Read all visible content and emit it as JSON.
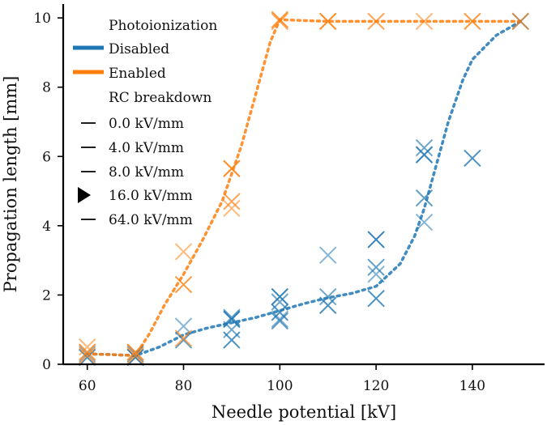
{
  "chart_data": {
    "type": "scatter",
    "title": "",
    "xlabel": "Needle potential [kV]",
    "ylabel": "Propagation length [mm]",
    "xlim": [
      55,
      155
    ],
    "ylim": [
      0,
      10.4
    ],
    "xticks": [
      60,
      80,
      100,
      120,
      140
    ],
    "yticks": [
      0,
      2,
      4,
      6,
      8,
      10
    ],
    "grid": false,
    "legend": {
      "placement": "top-left",
      "group1_title": "Photoionization",
      "series_labels": [
        "Disabled",
        "Enabled"
      ],
      "group2_title": "RC breakdown",
      "breakdown_labels": [
        "0.0 kV/mm",
        "4.0 kV/mm",
        "8.0 kV/mm",
        "16.0 kV/mm",
        "64.0 kV/mm"
      ]
    },
    "series": [
      {
        "name": "Disabled",
        "color": "#1f77b4",
        "points": [
          {
            "x": 60,
            "y": 0.3
          },
          {
            "x": 60,
            "y": 0.2
          },
          {
            "x": 70,
            "y": 0.3
          },
          {
            "x": 70,
            "y": 0.2
          },
          {
            "x": 80,
            "y": 0.7
          },
          {
            "x": 80,
            "y": 1.1
          },
          {
            "x": 90,
            "y": 0.7
          },
          {
            "x": 90,
            "y": 1.0
          },
          {
            "x": 90,
            "y": 1.3
          },
          {
            "x": 90,
            "y": 1.35
          },
          {
            "x": 100,
            "y": 1.3
          },
          {
            "x": 100,
            "y": 1.5
          },
          {
            "x": 100,
            "y": 1.8
          },
          {
            "x": 100,
            "y": 1.95
          },
          {
            "x": 100,
            "y": 1.25
          },
          {
            "x": 110,
            "y": 3.15
          },
          {
            "x": 110,
            "y": 1.7
          },
          {
            "x": 110,
            "y": 1.95
          },
          {
            "x": 120,
            "y": 3.6
          },
          {
            "x": 120,
            "y": 2.8
          },
          {
            "x": 120,
            "y": 2.6
          },
          {
            "x": 120,
            "y": 1.9
          },
          {
            "x": 130,
            "y": 6.25
          },
          {
            "x": 130,
            "y": 6.05
          },
          {
            "x": 130,
            "y": 4.8
          },
          {
            "x": 130,
            "y": 4.1
          },
          {
            "x": 140,
            "y": 5.95
          },
          {
            "x": 150,
            "y": 9.9
          }
        ],
        "fit_curve": {
          "x": [
            60,
            65,
            70,
            75,
            80,
            85,
            90,
            95,
            100,
            105,
            110,
            115,
            120,
            125,
            128,
            130,
            132,
            135,
            138,
            140,
            145,
            150
          ],
          "y": [
            0.3,
            0.28,
            0.25,
            0.5,
            0.85,
            1.05,
            1.2,
            1.35,
            1.55,
            1.75,
            1.92,
            2.05,
            2.25,
            2.9,
            3.7,
            4.5,
            5.5,
            7.0,
            8.2,
            8.8,
            9.5,
            9.9
          ]
        }
      },
      {
        "name": "Enabled",
        "color": "#ff7f0e",
        "points": [
          {
            "x": 60,
            "y": 0.5
          },
          {
            "x": 60,
            "y": 0.35
          },
          {
            "x": 60,
            "y": 0.25
          },
          {
            "x": 70,
            "y": 0.35
          },
          {
            "x": 70,
            "y": 0.25
          },
          {
            "x": 80,
            "y": 3.25
          },
          {
            "x": 80,
            "y": 2.3
          },
          {
            "x": 80,
            "y": 0.75
          },
          {
            "x": 90,
            "y": 5.65
          },
          {
            "x": 90,
            "y": 4.7
          },
          {
            "x": 90,
            "y": 4.5
          },
          {
            "x": 100,
            "y": 9.95
          },
          {
            "x": 100,
            "y": 9.9
          },
          {
            "x": 110,
            "y": 9.9
          },
          {
            "x": 120,
            "y": 9.9
          },
          {
            "x": 130,
            "y": 9.9
          },
          {
            "x": 140,
            "y": 9.9
          },
          {
            "x": 150,
            "y": 9.9
          }
        ],
        "fit_curve": {
          "x": [
            60,
            65,
            70,
            73,
            76,
            80,
            84,
            88,
            92,
            95,
            98,
            100,
            110,
            120,
            130,
            140,
            150
          ],
          "y": [
            0.3,
            0.28,
            0.25,
            0.9,
            1.7,
            2.6,
            3.6,
            4.7,
            6.3,
            7.8,
            9.3,
            9.95,
            9.9,
            9.9,
            9.9,
            9.9,
            9.9
          ]
        }
      }
    ]
  }
}
